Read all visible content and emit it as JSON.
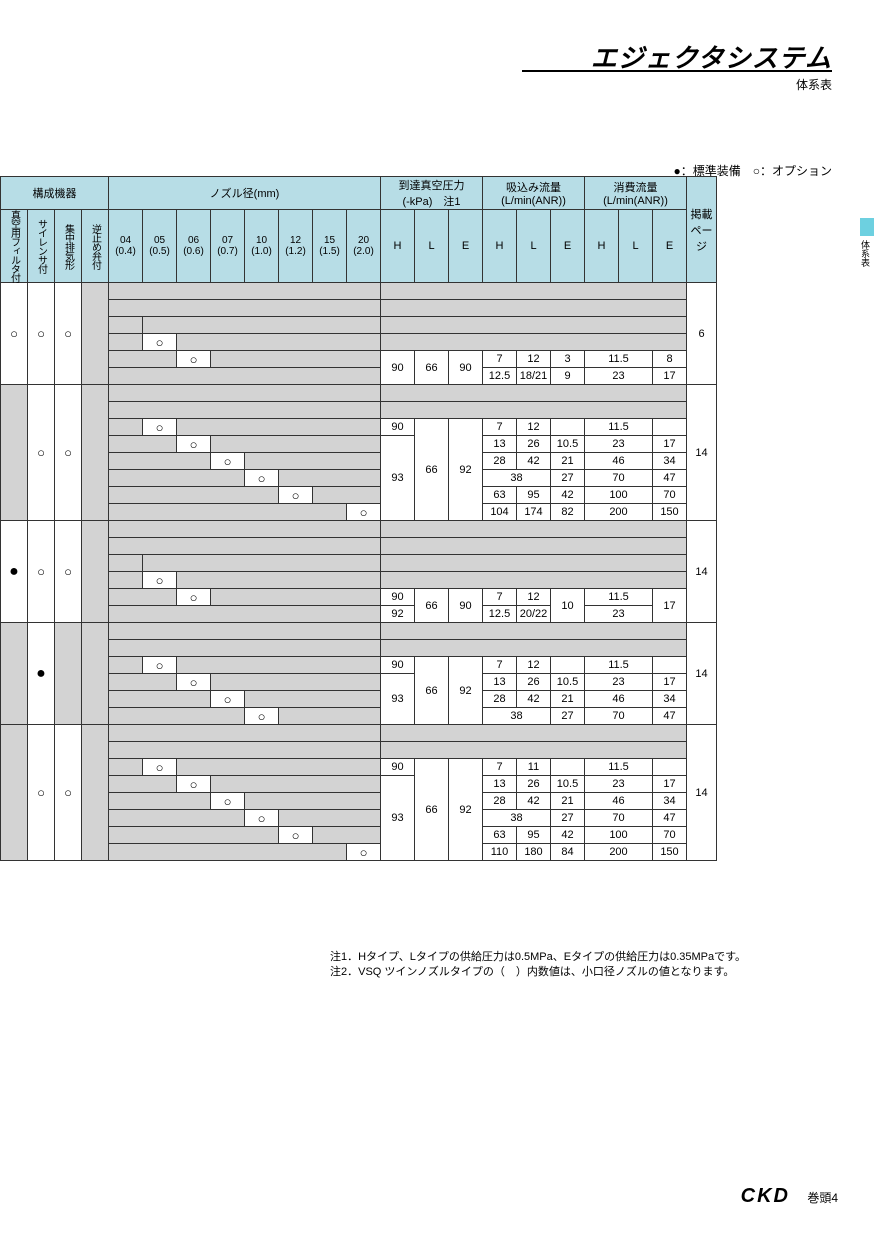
{
  "title": "エジェクタシステム",
  "subtitle": "体系表",
  "sideTab": "体系表",
  "legend": "●：標準装備　○：オプション",
  "colors": {
    "header_bg": "#b7dde6",
    "grey_bg": "#d3d3d3",
    "white_bg": "#ffffff",
    "border": "#333333",
    "side_tab": "#6dd0e0"
  },
  "headers": {
    "component": "構成機器",
    "nozzle": "ノズル径(mm)",
    "vacuum": "到達真空圧力",
    "vacuum2": "(-kPa)　注1",
    "suction": "吸込み流量",
    "suction2": "(L/min(ANR))",
    "consume": "消費流量",
    "consume2": "(L/min(ANR))",
    "page": "掲載\nページ",
    "comp_cols": [
      "真空用フィルタ付",
      "サイレンサ付",
      "集中排気形",
      "逆止め弁付"
    ],
    "noz_cols": [
      {
        "t": "04",
        "b": "(0.4)"
      },
      {
        "t": "05",
        "b": "(0.5)"
      },
      {
        "t": "06",
        "b": "(0.6)"
      },
      {
        "t": "07",
        "b": "(0.7)"
      },
      {
        "t": "10",
        "b": "(1.0)"
      },
      {
        "t": "12",
        "b": "(1.2)"
      },
      {
        "t": "15",
        "b": "(1.5)"
      },
      {
        "t": "20",
        "b": "(2.0)"
      }
    ],
    "hle": [
      "H",
      "L",
      "E"
    ]
  },
  "mark": {
    "o": "○",
    "dot": "●"
  },
  "groups": [
    {
      "comp": [
        "o",
        "o",
        "o",
        null
      ],
      "compRows": 6,
      "rows": [
        {
          "noz": [
            0,
            0,
            0,
            0,
            0,
            0,
            0,
            0
          ]
        },
        {
          "noz": [
            0,
            0,
            0,
            0,
            0,
            0,
            0,
            0
          ]
        },
        {
          "noz": [
            1,
            0,
            0,
            0,
            0,
            0,
            0,
            0
          ]
        },
        {
          "noz": [
            0,
            "o",
            0,
            0,
            0,
            0,
            0,
            0
          ]
        },
        {
          "noz": [
            0,
            0,
            "o",
            0,
            0,
            0,
            0,
            0
          ]
        },
        {
          "noz": [
            0,
            0,
            0,
            0,
            0,
            0,
            0,
            0
          ]
        }
      ],
      "vac": {
        "H": [
          "90"
        ],
        "L": [
          "66"
        ],
        "E": [
          "90"
        ],
        "span": [
          3,
          4
        ]
      },
      "suc": [
        [
          "7",
          "12",
          "3"
        ],
        [
          "12.5",
          "18/21",
          "9"
        ]
      ],
      "con": [
        [
          "11.5",
          "8"
        ],
        [
          "23",
          "17"
        ]
      ],
      "conMerge": [
        false,
        false
      ],
      "page": "6"
    },
    {
      "comp": [
        null,
        "o",
        "o",
        null
      ],
      "compRows": 8,
      "rows": [
        {
          "noz": [
            0,
            0,
            0,
            0,
            0,
            0,
            0,
            0
          ]
        },
        {
          "noz": [
            0,
            0,
            0,
            0,
            0,
            0,
            0,
            0
          ]
        },
        {
          "noz": [
            0,
            "o",
            0,
            0,
            0,
            0,
            0,
            0
          ]
        },
        {
          "noz": [
            0,
            0,
            "o",
            0,
            0,
            0,
            0,
            0
          ]
        },
        {
          "noz": [
            0,
            0,
            0,
            "o",
            0,
            0,
            0,
            0
          ]
        },
        {
          "noz": [
            0,
            0,
            0,
            0,
            "o",
            0,
            0,
            0
          ]
        },
        {
          "noz": [
            0,
            0,
            0,
            0,
            0,
            "o",
            0,
            0
          ]
        },
        {
          "noz": [
            0,
            0,
            0,
            0,
            0,
            0,
            0,
            "o"
          ]
        }
      ],
      "vac": {
        "H": [
          "90",
          "93"
        ],
        "Hspan": [
          1,
          5
        ],
        "L": [
          "66"
        ],
        "E": [
          "92"
        ],
        "span": [
          2,
          6
        ]
      },
      "suc": [
        [
          "7",
          "12",
          ""
        ],
        [
          "13",
          "26",
          "10.5"
        ],
        [
          "28",
          "42",
          "21"
        ],
        [
          "38",
          "",
          "27"
        ],
        [
          "63",
          "95",
          "42"
        ],
        [
          "104",
          "174",
          "82"
        ]
      ],
      "con": [
        [
          "11.5",
          ""
        ],
        [
          "23",
          "17"
        ],
        [
          "46",
          "34"
        ],
        [
          "70",
          "47"
        ],
        [
          "100",
          "70"
        ],
        [
          "200",
          "150"
        ]
      ],
      "conMerge": [
        true,
        false,
        false,
        true,
        false,
        false
      ],
      "page": "14"
    },
    {
      "comp": [
        "dot",
        "o",
        "o",
        null
      ],
      "compRows": 6,
      "rows": [
        {
          "noz": [
            0,
            0,
            0,
            0,
            0,
            0,
            0,
            0
          ]
        },
        {
          "noz": [
            0,
            0,
            0,
            0,
            0,
            0,
            0,
            0
          ]
        },
        {
          "noz": [
            1,
            0,
            0,
            0,
            0,
            0,
            0,
            0
          ]
        },
        {
          "noz": [
            0,
            "o",
            0,
            0,
            0,
            0,
            0,
            0
          ]
        },
        {
          "noz": [
            0,
            0,
            "o",
            0,
            0,
            0,
            0,
            0
          ]
        },
        {
          "noz": [
            0,
            0,
            0,
            0,
            0,
            0,
            0,
            0
          ]
        }
      ],
      "vac": {
        "H": [
          "90",
          "92"
        ],
        "Hspan": [
          1,
          1
        ],
        "L": [
          "66"
        ],
        "E": [
          "90"
        ],
        "span": [
          3,
          4
        ]
      },
      "suc": [
        [
          "7",
          "12",
          ""
        ],
        [
          "12.5",
          "20/22",
          "10"
        ]
      ],
      "sucEmerge": true,
      "con": [
        [
          "11.5",
          ""
        ],
        [
          "23",
          "17"
        ]
      ],
      "conMerge": [
        true,
        true
      ],
      "conEmerge": true,
      "page": "14"
    },
    {
      "comp": [
        null,
        "dot",
        null,
        null
      ],
      "compRows": 6,
      "rows": [
        {
          "noz": [
            0,
            0,
            0,
            0,
            0,
            0,
            0,
            0
          ]
        },
        {
          "noz": [
            0,
            0,
            0,
            0,
            0,
            0,
            0,
            0
          ]
        },
        {
          "noz": [
            0,
            "o",
            0,
            0,
            0,
            0,
            0,
            0
          ]
        },
        {
          "noz": [
            0,
            0,
            "o",
            0,
            0,
            0,
            0,
            0
          ]
        },
        {
          "noz": [
            0,
            0,
            0,
            "o",
            0,
            0,
            0,
            0
          ]
        },
        {
          "noz": [
            0,
            0,
            0,
            0,
            "o",
            0,
            0,
            0
          ]
        }
      ],
      "vac": {
        "H": [
          "90",
          "93"
        ],
        "Hspan": [
          1,
          3
        ],
        "L": [
          "66"
        ],
        "E": [
          "92"
        ],
        "span": [
          2,
          4
        ]
      },
      "suc": [
        [
          "7",
          "12",
          ""
        ],
        [
          "13",
          "26",
          "10.5"
        ],
        [
          "28",
          "42",
          "21"
        ],
        [
          "38",
          "",
          "27"
        ]
      ],
      "con": [
        [
          "11.5",
          ""
        ],
        [
          "23",
          "17"
        ],
        [
          "46",
          "34"
        ],
        [
          "70",
          "47"
        ]
      ],
      "conMerge": [
        true,
        false,
        false,
        true
      ],
      "page": "14"
    },
    {
      "comp": [
        null,
        "o",
        "o",
        null
      ],
      "compRows": 8,
      "rows": [
        {
          "noz": [
            0,
            0,
            0,
            0,
            0,
            0,
            0,
            0
          ]
        },
        {
          "noz": [
            0,
            0,
            0,
            0,
            0,
            0,
            0,
            0
          ]
        },
        {
          "noz": [
            0,
            "o",
            0,
            0,
            0,
            0,
            0,
            0
          ]
        },
        {
          "noz": [
            0,
            0,
            "o",
            0,
            0,
            0,
            0,
            0
          ]
        },
        {
          "noz": [
            0,
            0,
            0,
            "o",
            0,
            0,
            0,
            0
          ]
        },
        {
          "noz": [
            0,
            0,
            0,
            0,
            "o",
            0,
            0,
            0
          ]
        },
        {
          "noz": [
            0,
            0,
            0,
            0,
            0,
            "o",
            0,
            0
          ]
        },
        {
          "noz": [
            0,
            0,
            0,
            0,
            0,
            0,
            0,
            "o"
          ]
        }
      ],
      "vac": {
        "H": [
          "90",
          "93"
        ],
        "Hspan": [
          1,
          5
        ],
        "L": [
          "66"
        ],
        "E": [
          "92"
        ],
        "span": [
          2,
          6
        ]
      },
      "suc": [
        [
          "7",
          "11",
          ""
        ],
        [
          "13",
          "26",
          "10.5"
        ],
        [
          "28",
          "42",
          "21"
        ],
        [
          "38",
          "",
          "27"
        ],
        [
          "63",
          "95",
          "42"
        ],
        [
          "110",
          "180",
          "84"
        ]
      ],
      "con": [
        [
          "11.5",
          ""
        ],
        [
          "23",
          "17"
        ],
        [
          "46",
          "34"
        ],
        [
          "70",
          "47"
        ],
        [
          "100",
          "70"
        ],
        [
          "200",
          "150"
        ]
      ],
      "conMerge": [
        true,
        false,
        false,
        true,
        false,
        false
      ],
      "page": "14"
    }
  ],
  "notes": [
    "注1．Hタイプ、Lタイプの供給圧力は0.5MPa、Eタイプの供給圧力は0.35MPaです。",
    "注2．VSQ ツインノズルタイプの（　）内数値は、小口径ノズルの値となります。"
  ],
  "footer": {
    "brand": "CKD",
    "page": "巻頭4"
  }
}
